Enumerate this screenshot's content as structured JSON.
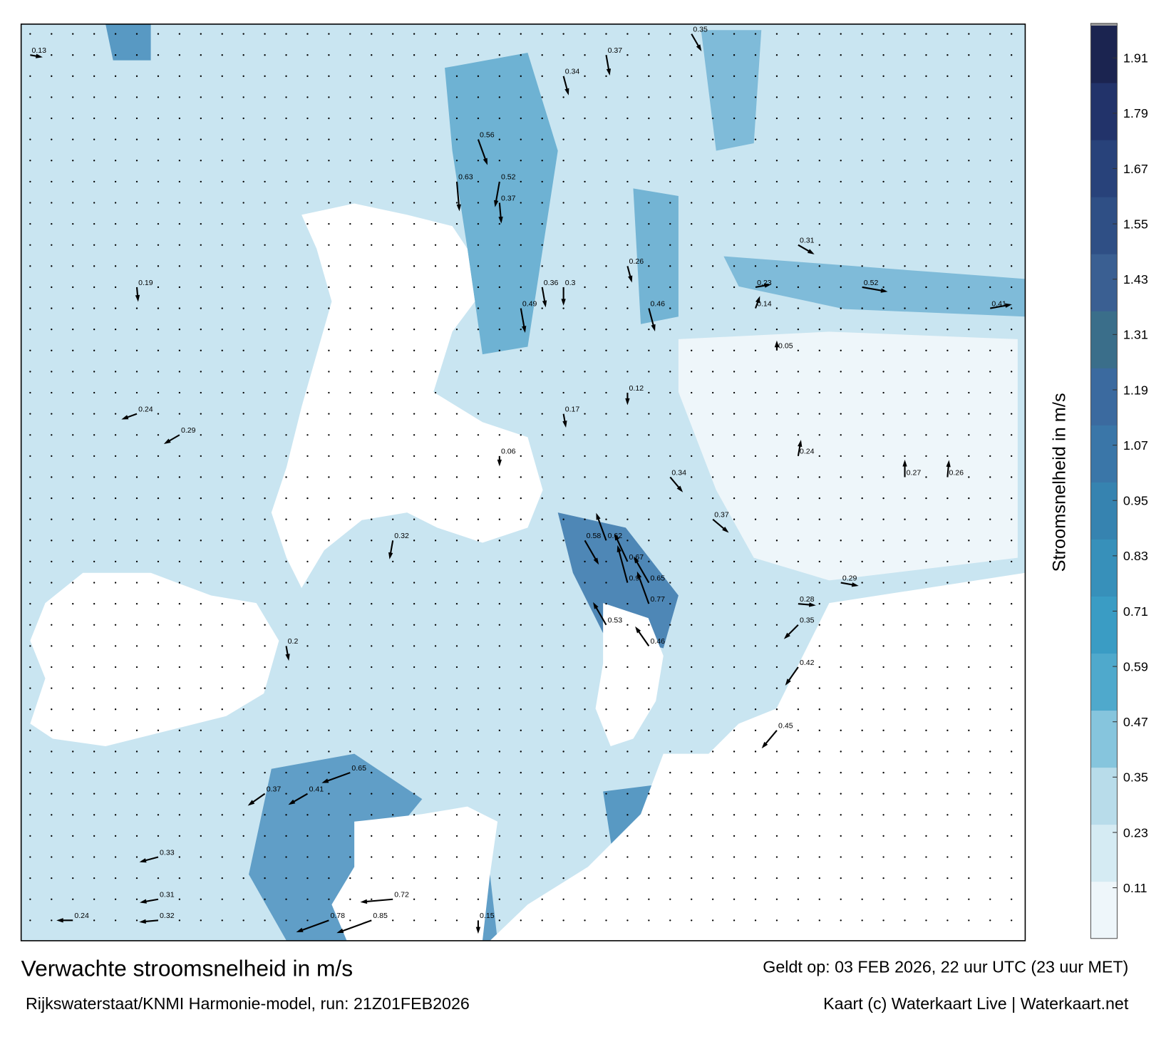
{
  "map": {
    "title": "Verwachte stroomsnelheid in m/s",
    "source": "Rijkswaterstaat/KNMI Harmonie-model, run: 21Z01FEB2026",
    "valid": "Geldt op: 03 FEB 2026, 22 uur UTC (23 uur MET)",
    "credit": "Kaart (c) Waterkaart Live | Waterkaart.net",
    "colorbar": {
      "label": "Stroomsnelheid in m/s",
      "lim": [
        0,
        1.98
      ],
      "ticks": [
        0.11,
        0.23,
        0.35,
        0.47,
        0.59,
        0.71,
        0.83,
        0.95,
        1.07,
        1.19,
        1.31,
        1.43,
        1.55,
        1.67,
        1.79,
        1.91
      ],
      "colors": [
        "#eef6fa",
        "#d5ebf3",
        "#b8dcea",
        "#86c5dd",
        "#4fa9cc",
        "#3a9cc4",
        "#3790ba",
        "#3683b0",
        "#3a76a8",
        "#3b6a9f",
        "#3a6e8a",
        "#3a5f92",
        "#2f4f85",
        "#28427a",
        "#22336a",
        "#1b2450"
      ],
      "over_color": "#9a9a9a"
    },
    "currents": [
      {
        "col": 0,
        "row": 1,
        "speed": 0.13,
        "dir": 100
      },
      {
        "col": 21,
        "row": 5,
        "speed": 0.56,
        "dir": 160
      },
      {
        "col": 20,
        "row": 7,
        "speed": 0.63,
        "dir": 175
      },
      {
        "col": 22,
        "row": 7,
        "speed": 0.52,
        "dir": 190
      },
      {
        "col": 23,
        "row": 13,
        "speed": 0.49,
        "dir": 170
      },
      {
        "col": 22,
        "row": 8,
        "speed": 0.37,
        "dir": 175
      },
      {
        "col": 24,
        "row": 12,
        "speed": 0.36,
        "dir": 170
      },
      {
        "col": 25,
        "row": 12,
        "speed": 0.3,
        "dir": 180
      },
      {
        "col": 28,
        "row": 11,
        "speed": 0.26,
        "dir": 165
      },
      {
        "col": 29,
        "row": 13,
        "speed": 0.46,
        "dir": 165
      },
      {
        "col": 39,
        "row": 12,
        "speed": 0.52,
        "dir": 100
      },
      {
        "col": 45,
        "row": 13,
        "speed": 0.41,
        "dir": 80
      },
      {
        "col": 26,
        "row": 24,
        "speed": 0.58,
        "dir": 150
      },
      {
        "col": 27,
        "row": 24,
        "speed": 0.62,
        "dir": 340
      },
      {
        "col": 28,
        "row": 26,
        "speed": 0.9,
        "dir": 345
      },
      {
        "col": 28,
        "row": 25,
        "speed": 0.67,
        "dir": 335
      },
      {
        "col": 29,
        "row": 26,
        "speed": 0.65,
        "dir": 330
      },
      {
        "col": 29,
        "row": 27,
        "speed": 0.77,
        "dir": 340
      },
      {
        "col": 27,
        "row": 28,
        "speed": 0.53,
        "dir": 330
      },
      {
        "col": 29,
        "row": 29,
        "speed": 0.46,
        "dir": 325
      },
      {
        "col": 36,
        "row": 27,
        "speed": 0.28,
        "dir": 95
      },
      {
        "col": 38,
        "row": 26,
        "speed": 0.29,
        "dir": 100
      },
      {
        "col": 36,
        "row": 28,
        "speed": 0.35,
        "dir": 225
      },
      {
        "col": 36,
        "row": 30,
        "speed": 0.42,
        "dir": 215
      },
      {
        "col": 35,
        "row": 33,
        "speed": 0.45,
        "dir": 220
      },
      {
        "col": 17,
        "row": 24,
        "speed": 0.32,
        "dir": 190
      },
      {
        "col": 21,
        "row": 42,
        "speed": 0.15,
        "dir": 180
      },
      {
        "col": 16,
        "row": 42,
        "speed": 0.85,
        "dir": 250
      },
      {
        "col": 17,
        "row": 41,
        "speed": 0.72,
        "dir": 265
      },
      {
        "col": 15,
        "row": 35,
        "speed": 0.65,
        "dir": 250
      },
      {
        "col": 13,
        "row": 36,
        "speed": 0.41,
        "dir": 240
      },
      {
        "col": 11,
        "row": 36,
        "speed": 0.37,
        "dir": 235
      },
      {
        "col": 6,
        "row": 39,
        "speed": 0.33,
        "dir": 255
      },
      {
        "col": 6,
        "row": 41,
        "speed": 0.31,
        "dir": 260
      },
      {
        "col": 6,
        "row": 42,
        "speed": 0.32,
        "dir": 265
      },
      {
        "col": 2,
        "row": 42,
        "speed": 0.24,
        "dir": 270
      },
      {
        "col": 12,
        "row": 29,
        "speed": 0.2,
        "dir": 170
      },
      {
        "col": 5,
        "row": 12,
        "speed": 0.19,
        "dir": 175
      },
      {
        "col": 5,
        "row": 18,
        "speed": 0.24,
        "dir": 250
      },
      {
        "col": 7,
        "row": 19,
        "speed": 0.29,
        "dir": 240
      },
      {
        "col": 41,
        "row": 21,
        "speed": 0.27,
        "dir": 0
      },
      {
        "col": 43,
        "row": 21,
        "speed": 0.26,
        "dir": 5
      },
      {
        "col": 32,
        "row": 23,
        "speed": 0.37,
        "dir": 130
      },
      {
        "col": 30,
        "row": 21,
        "speed": 0.34,
        "dir": 140
      },
      {
        "col": 25,
        "row": 2,
        "speed": 0.34,
        "dir": 165
      },
      {
        "col": 27,
        "row": 1,
        "speed": 0.37,
        "dir": 170
      },
      {
        "col": 31,
        "row": 0,
        "speed": 0.35,
        "dir": 150
      },
      {
        "col": 36,
        "row": 10,
        "speed": 0.31,
        "dir": 120
      },
      {
        "col": 34,
        "row": 12,
        "speed": 0.23,
        "dir": 80
      },
      {
        "col": 28,
        "row": 17,
        "speed": 0.12,
        "dir": 180
      },
      {
        "col": 22,
        "row": 20,
        "speed": 0.06,
        "dir": 180
      },
      {
        "col": 36,
        "row": 20,
        "speed": 0.24,
        "dir": 10
      },
      {
        "col": 34,
        "row": 13,
        "speed": 0.14,
        "dir": 20
      },
      {
        "col": 35,
        "row": 15,
        "speed": 0.05,
        "dir": 0
      },
      {
        "col": 25,
        "row": 18,
        "speed": 0.17,
        "dir": 170
      },
      {
        "col": 14,
        "row": 42,
        "speed": 0.78,
        "dir": 250
      }
    ]
  }
}
